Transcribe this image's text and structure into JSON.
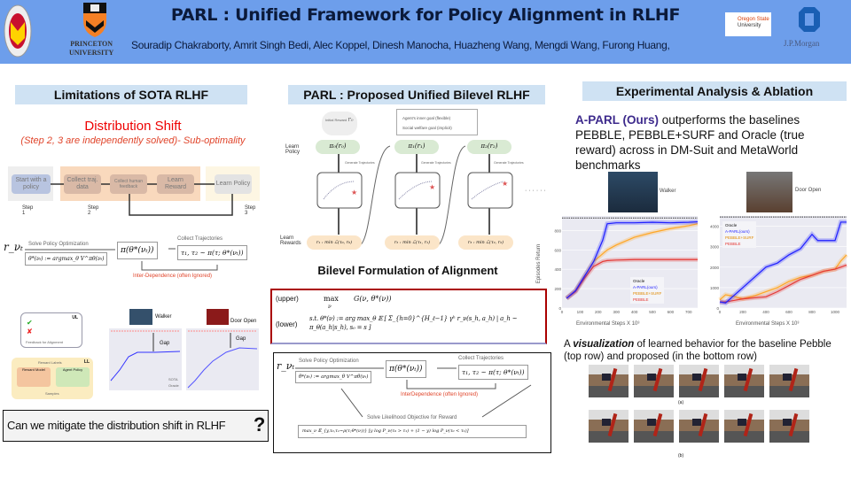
{
  "header": {
    "title": "PARL : Unified Framework for Policy Alignment in RLHF",
    "authors": "Souradip Chakraborty, Amrit Singh Bedi, Alec Koppel, Dinesh Manocha, Huazheng Wang, Mengdi Wang, Furong Huang,",
    "logos": {
      "umd": "UNIVERSITY OF MARYLAND",
      "princeton": "PRINCETON UNIVERSITY",
      "osu": "Oregon State University",
      "jpm": "J.P.Morgan"
    }
  },
  "col1": {
    "heading": "Limitations of SOTA RLHF",
    "shift_title": "Distribution Shift",
    "shift_sub": "(Step 2, 3 are independently solved)- Sub-optimality",
    "flow": [
      "Start with a policy",
      "Collect traj. data",
      "Collect human feedback",
      "Learn Reward",
      "Learn Policy"
    ],
    "steps": [
      "Step 1",
      "Step 2",
      "Step 3"
    ],
    "formula": {
      "r": "r_νₜ",
      "solve": "Solve Policy Optimization",
      "argmax": "θ*(νₜ) := argmax_θ V^πθ(νₜ)",
      "pi": "π(θ*(νₜ))",
      "collect": "Collect Trajectories",
      "traj": "τ₁, τ₂ ~ π(τ; θ*(νₜ))",
      "inter": "Inter-Dependence (often Ignored)"
    },
    "loop": {
      "feedback": "Feedback for Alignment",
      "ul": "UL",
      "ll": "LL",
      "reward_labels": "Reward Labels",
      "reward_model": "Reward Model",
      "agent_policy": "Agent Policy",
      "samples": "Samples"
    },
    "plots": {
      "walker": "Walker",
      "door": "Door Open",
      "gap": "Gap",
      "sota": "SOTA",
      "oracle": "Oracle"
    },
    "question": "Can we mitigate the distribution shift in RLHF"
  },
  "col2": {
    "heading": "PARL : Proposed Unified  Bilevel RLHF",
    "legend": [
      "Agent's inner goal (flexible)",
      "Social welfare goal (implicit)"
    ],
    "initial": "Initial Reward",
    "r0": "r₀",
    "learn_policy": "Learn Policy",
    "learn_rewards": "Learn Rewards",
    "policies": [
      "π₀(r₀)",
      "π₁(r₁)",
      "π₂(r₂)"
    ],
    "rewards": [
      "r₁ : min ℒ(τ₀, r₀)",
      "r₂ : min ℒ(τ₁, r₁)",
      "r₃ : min ℒ(τ₂, r₂)"
    ],
    "gen": "Generate Trajectories",
    "dots": "· · · · · ·",
    "bilevel_title": "Bilevel Formulation of Alignment",
    "upper_label": "(upper)",
    "upper_op": "max",
    "upper_sub": "ν",
    "upper_expr": "G(ν, θ*(ν))",
    "lower_label": "(lower)",
    "lower_expr": "s.t.  θ*(ν) := arg max_θ 𝔼 [ Σ_{h=0}^{H_ℓ−1} γʰ r_ν(s_h, a_h) | a_h ~ π_θ(a_h|s_h), s₀ = s ]",
    "loop": {
      "r": "r_νₜ",
      "solve": "Solve Policy Optimization",
      "argmax": "θ*(νₜ) := argmax_θ V^πθ(νₜ)",
      "pi": "π(θ*(νₜ))",
      "collect": "Collect Trajectories",
      "traj": "τ₁, τ₂ ~ π(τ; θ*(νₜ))",
      "inter": "InterDependence (often Ignored)",
      "likelihood": "Solve Likelihood Objective for Reward",
      "objective": "max_ν 𝔼_{y,τ₀,τ₁~ρ(τ;θ*(ν))} [y log P_ν(τ₀ > τ₁) + (1 − y) log P_ν(τ₀ < τ₁)]"
    }
  },
  "col3": {
    "heading": "Experimental Analysis & Ablation",
    "claim_strong": "A-PARL (Ours)",
    "claim_rest": " outperforms the baselines PEBBLE, PEBBLE+SURF and Oracle (true reward) across in DM-Suit and MetaWorld benchmarks",
    "walker": "Walker",
    "door": "Door Open",
    "ylabel": "Episodes Return",
    "xlabel": "Environmental Steps X 10³",
    "legend": [
      "Oracle",
      "A-PARL(ours)",
      "PEBBLE+SURF",
      "PEBBLE"
    ],
    "colors": {
      "oracle": "#333333",
      "aparl": "#1f1fff",
      "surf": "#ffa726",
      "pebble": "#e53935"
    },
    "vis_pre": "A ",
    "vis_em": "visualization",
    "vis_post": " of learned behavior for the baseline Pebble (top row) and proposed (in the bottom row)",
    "cap_a": "(a)",
    "cap_b": "(b)"
  },
  "figures": [
    {
      "name": "walker",
      "xlim": [
        0,
        750
      ],
      "ylim": [
        0,
        950
      ],
      "xticks": [
        0,
        100,
        200,
        300,
        400,
        500,
        600,
        700
      ],
      "yticks": [
        0,
        200,
        400,
        600,
        800
      ],
      "oracle": 930,
      "x": [
        25,
        75,
        125,
        175,
        225,
        250,
        300,
        400,
        500,
        600,
        700,
        750
      ],
      "aparl": [
        100,
        180,
        330,
        480,
        700,
        870,
        880,
        880,
        885,
        880,
        885,
        890
      ],
      "surf": [
        100,
        180,
        330,
        480,
        560,
        600,
        650,
        730,
        780,
        820,
        850,
        870
      ],
      "pebble": [
        100,
        170,
        310,
        430,
        480,
        490,
        495,
        500,
        500,
        500,
        500,
        500
      ]
    },
    {
      "name": "door",
      "xlim": [
        0,
        1100
      ],
      "ylim": [
        0,
        4500
      ],
      "xticks": [
        0,
        200,
        400,
        600,
        800,
        1000
      ],
      "yticks": [
        0,
        1000,
        2000,
        3000,
        4000
      ],
      "oracle": 4450,
      "x": [
        0,
        50,
        100,
        200,
        300,
        400,
        500,
        600,
        700,
        800,
        850,
        900,
        1000,
        1050,
        1100
      ],
      "aparl": [
        300,
        250,
        500,
        1000,
        1500,
        2000,
        2200,
        2600,
        2900,
        3600,
        3300,
        3300,
        3300,
        4200,
        4200
      ],
      "surf": [
        400,
        650,
        600,
        450,
        600,
        800,
        1000,
        1300,
        1500,
        1600,
        1700,
        1800,
        1900,
        2300,
        2600
      ],
      "pebble": [
        300,
        300,
        350,
        450,
        500,
        550,
        800,
        1100,
        1400,
        1600,
        1700,
        1800,
        1900,
        2000,
        2100
      ]
    }
  ]
}
